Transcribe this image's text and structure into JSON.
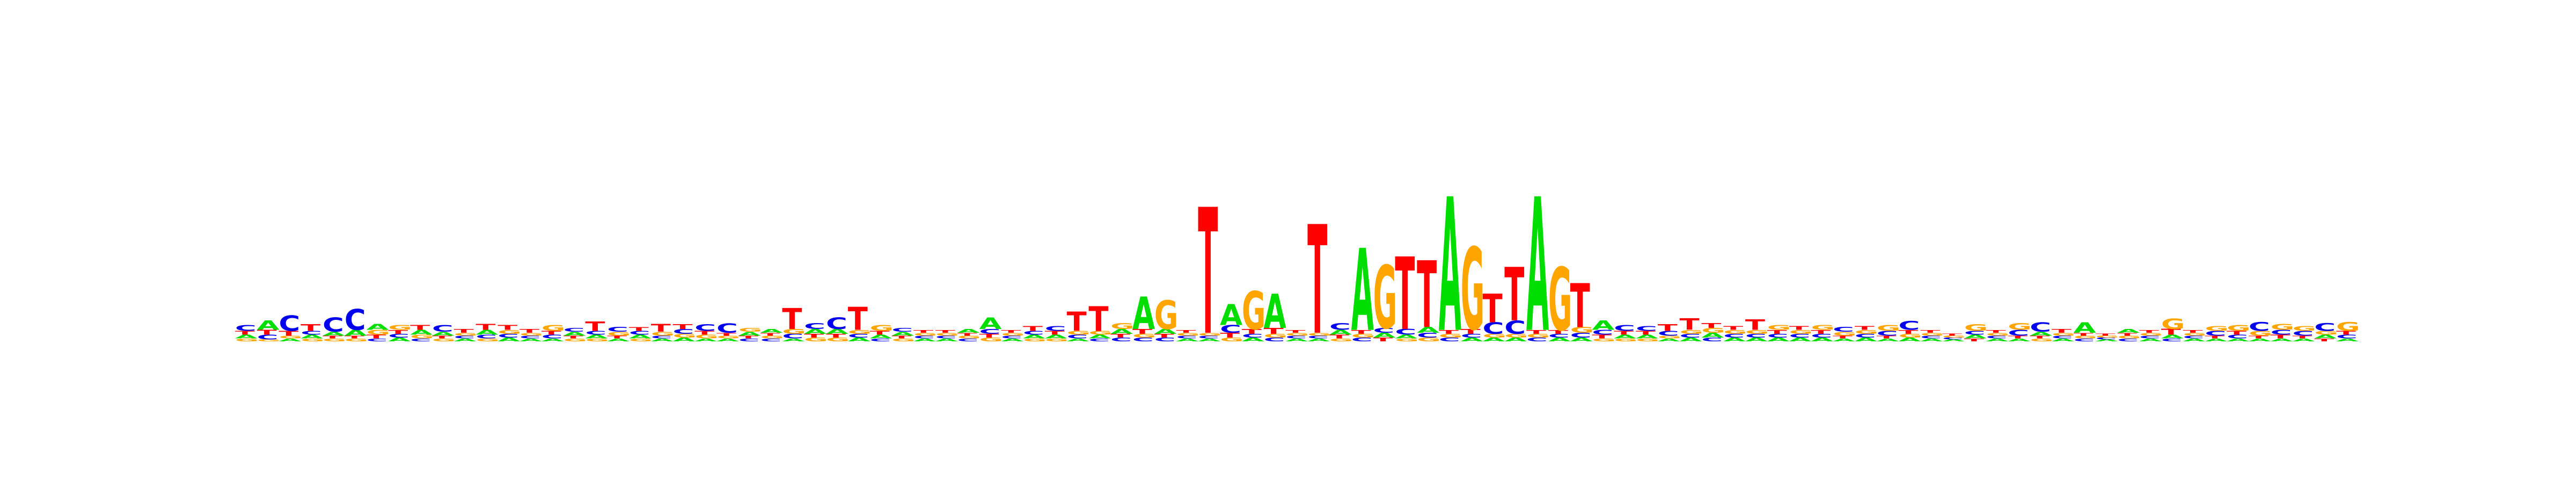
{
  "chart_data": {
    "type": "sequence_logo",
    "title": "",
    "xlabel": "",
    "ylabel": "",
    "alphabet": [
      "A",
      "C",
      "G",
      "T"
    ],
    "colors": {
      "A": "#00dd00",
      "C": "#0000ee",
      "G": "#ffa500",
      "T": "#ff0000"
    },
    "ylim": [
      0,
      2.0
    ],
    "positions": [
      {
        "A": 0.04,
        "C": 0.06,
        "G": 0.03,
        "T": 0.04
      },
      {
        "A": 0.1,
        "C": 0.05,
        "G": 0.02,
        "T": 0.05
      },
      {
        "A": 0.03,
        "C": 0.16,
        "G": 0.03,
        "T": 0.05
      },
      {
        "A": 0.04,
        "C": 0.04,
        "G": 0.03,
        "T": 0.07
      },
      {
        "A": 0.04,
        "C": 0.15,
        "G": 0.03,
        "T": 0.03
      },
      {
        "A": 0.06,
        "C": 0.22,
        "G": 0.03,
        "T": 0.03
      },
      {
        "A": 0.06,
        "C": 0.03,
        "G": 0.05,
        "T": 0.04
      },
      {
        "A": 0.04,
        "C": 0.04,
        "G": 0.05,
        "T": 0.04
      },
      {
        "A": 0.05,
        "C": 0.03,
        "G": 0.04,
        "T": 0.05
      },
      {
        "A": 0.04,
        "C": 0.07,
        "G": 0.03,
        "T": 0.03
      },
      {
        "A": 0.03,
        "C": 0.03,
        "G": 0.03,
        "T": 0.04
      },
      {
        "A": 0.05,
        "C": 0.04,
        "G": 0.03,
        "T": 0.06
      },
      {
        "A": 0.04,
        "C": 0.04,
        "G": 0.04,
        "T": 0.05
      },
      {
        "A": 0.03,
        "C": 0.03,
        "G": 0.03,
        "T": 0.04
      },
      {
        "A": 0.03,
        "C": 0.04,
        "G": 0.06,
        "T": 0.04
      },
      {
        "A": 0.04,
        "C": 0.04,
        "G": 0.03,
        "T": 0.03
      },
      {
        "A": 0.04,
        "C": 0.04,
        "G": 0.03,
        "T": 0.1
      },
      {
        "A": 0.03,
        "C": 0.05,
        "G": 0.04,
        "T": 0.03
      },
      {
        "A": 0.04,
        "C": 0.04,
        "G": 0.03,
        "T": 0.04
      },
      {
        "A": 0.03,
        "C": 0.03,
        "G": 0.04,
        "T": 0.08
      },
      {
        "A": 0.04,
        "C": 0.05,
        "G": 0.04,
        "T": 0.05
      },
      {
        "A": 0.03,
        "C": 0.07,
        "G": 0.04,
        "T": 0.04
      },
      {
        "A": 0.03,
        "C": 0.1,
        "G": 0.03,
        "T": 0.03
      },
      {
        "A": 0.04,
        "C": 0.03,
        "G": 0.04,
        "T": 0.03
      },
      {
        "A": 0.04,
        "C": 0.03,
        "G": 0.03,
        "T": 0.03
      },
      {
        "A": 0.03,
        "C": 0.05,
        "G": 0.05,
        "T": 0.22
      },
      {
        "A": 0.05,
        "C": 0.06,
        "G": 0.04,
        "T": 0.04
      },
      {
        "A": 0.05,
        "C": 0.12,
        "G": 0.04,
        "T": 0.04
      },
      {
        "A": 0.04,
        "C": 0.04,
        "G": 0.04,
        "T": 0.24
      },
      {
        "A": 0.04,
        "C": 0.03,
        "G": 0.06,
        "T": 0.04
      },
      {
        "A": 0.04,
        "C": 0.04,
        "G": 0.03,
        "T": 0.03
      },
      {
        "A": 0.03,
        "C": 0.03,
        "G": 0.03,
        "T": 0.03
      },
      {
        "A": 0.03,
        "C": 0.03,
        "G": 0.03,
        "T": 0.03
      },
      {
        "A": 0.04,
        "C": 0.03,
        "G": 0.03,
        "T": 0.03
      },
      {
        "A": 0.12,
        "C": 0.05,
        "G": 0.04,
        "T": 0.04
      },
      {
        "A": 0.03,
        "C": 0.03,
        "G": 0.03,
        "T": 0.03
      },
      {
        "A": 0.04,
        "C": 0.04,
        "G": 0.03,
        "T": 0.05
      },
      {
        "A": 0.04,
        "C": 0.05,
        "G": 0.03,
        "T": 0.04
      },
      {
        "A": 0.03,
        "C": 0.04,
        "G": 0.04,
        "T": 0.2
      },
      {
        "A": 0.04,
        "C": 0.03,
        "G": 0.04,
        "T": 0.26
      },
      {
        "A": 0.05,
        "C": 0.04,
        "G": 0.06,
        "T": 0.04
      },
      {
        "A": 0.34,
        "C": 0.04,
        "G": 0.04,
        "T": 0.05
      },
      {
        "A": 0.05,
        "C": 0.04,
        "G": 0.3,
        "T": 0.04
      },
      {
        "A": 0.03,
        "C": 0.03,
        "G": 0.03,
        "T": 0.03
      },
      {
        "A": 0.03,
        "C": 0.03,
        "G": 0.03,
        "T": 1.32
      },
      {
        "A": 0.22,
        "C": 0.08,
        "G": 0.04,
        "T": 0.05
      },
      {
        "A": 0.04,
        "C": 0.04,
        "G": 0.4,
        "T": 0.05
      },
      {
        "A": 0.36,
        "C": 0.04,
        "G": 0.04,
        "T": 0.06
      },
      {
        "A": 0.03,
        "C": 0.03,
        "G": 0.03,
        "T": 0.03
      },
      {
        "A": 0.03,
        "C": 0.03,
        "G": 0.03,
        "T": 1.14
      },
      {
        "A": 0.05,
        "C": 0.07,
        "G": 0.03,
        "T": 0.04
      },
      {
        "A": 0.86,
        "C": 0.04,
        "G": 0.04,
        "T": 0.04
      },
      {
        "A": 0.05,
        "C": 0.05,
        "G": 0.66,
        "T": 0.04
      },
      {
        "A": 0.04,
        "C": 0.06,
        "G": 0.03,
        "T": 0.76
      },
      {
        "A": 0.06,
        "C": 0.05,
        "G": 0.04,
        "T": 0.7
      },
      {
        "A": 1.4,
        "C": 0.04,
        "G": 0.04,
        "T": 0.04
      },
      {
        "A": 0.04,
        "C": 0.04,
        "G": 0.86,
        "T": 0.05
      },
      {
        "A": 0.04,
        "C": 0.12,
        "G": 0.04,
        "T": 0.3
      },
      {
        "A": 0.04,
        "C": 0.14,
        "G": 0.04,
        "T": 0.56
      },
      {
        "A": 1.4,
        "C": 0.04,
        "G": 0.04,
        "T": 0.04
      },
      {
        "A": 0.04,
        "C": 0.04,
        "G": 0.66,
        "T": 0.04
      },
      {
        "A": 0.04,
        "C": 0.05,
        "G": 0.06,
        "T": 0.46
      },
      {
        "A": 0.1,
        "C": 0.05,
        "G": 0.03,
        "T": 0.04
      },
      {
        "A": 0.04,
        "C": 0.06,
        "G": 0.03,
        "T": 0.04
      },
      {
        "A": 0.04,
        "C": 0.05,
        "G": 0.03,
        "T": 0.04
      },
      {
        "A": 0.03,
        "C": 0.05,
        "G": 0.03,
        "T": 0.07
      },
      {
        "A": 0.04,
        "C": 0.04,
        "G": 0.04,
        "T": 0.12
      },
      {
        "A": 0.05,
        "C": 0.04,
        "G": 0.05,
        "T": 0.05
      },
      {
        "A": 0.04,
        "C": 0.04,
        "G": 0.04,
        "T": 0.04
      },
      {
        "A": 0.04,
        "C": 0.04,
        "G": 0.04,
        "T": 0.11
      },
      {
        "A": 0.04,
        "C": 0.04,
        "G": 0.05,
        "T": 0.04
      },
      {
        "A": 0.04,
        "C": 0.04,
        "G": 0.04,
        "T": 0.04
      },
      {
        "A": 0.04,
        "C": 0.04,
        "G": 0.05,
        "T": 0.04
      },
      {
        "A": 0.03,
        "C": 0.05,
        "G": 0.04,
        "T": 0.03
      },
      {
        "A": 0.04,
        "C": 0.04,
        "G": 0.04,
        "T": 0.04
      },
      {
        "A": 0.03,
        "C": 0.05,
        "G": 0.06,
        "T": 0.03
      },
      {
        "A": 0.04,
        "C": 0.09,
        "G": 0.04,
        "T": 0.04
      },
      {
        "A": 0.03,
        "C": 0.03,
        "G": 0.03,
        "T": 0.03
      },
      {
        "A": 0.02,
        "C": 0.02,
        "G": 0.02,
        "T": 0.02
      },
      {
        "A": 0.04,
        "C": 0.04,
        "G": 0.07,
        "T": 0.03
      },
      {
        "A": 0.03,
        "C": 0.03,
        "G": 0.03,
        "T": 0.03
      },
      {
        "A": 0.03,
        "C": 0.06,
        "G": 0.07,
        "T": 0.03
      },
      {
        "A": 0.04,
        "C": 0.1,
        "G": 0.03,
        "T": 0.03
      },
      {
        "A": 0.03,
        "C": 0.03,
        "G": 0.03,
        "T": 0.04
      },
      {
        "A": 0.11,
        "C": 0.03,
        "G": 0.03,
        "T": 0.03
      },
      {
        "A": 0.02,
        "C": 0.02,
        "G": 0.02,
        "T": 0.02
      },
      {
        "A": 0.04,
        "C": 0.03,
        "G": 0.03,
        "T": 0.03
      },
      {
        "A": 0.03,
        "C": 0.03,
        "G": 0.03,
        "T": 0.03
      },
      {
        "A": 0.04,
        "C": 0.03,
        "G": 0.11,
        "T": 0.06
      },
      {
        "A": 0.03,
        "C": 0.03,
        "G": 0.03,
        "T": 0.03
      },
      {
        "A": 0.03,
        "C": 0.05,
        "G": 0.05,
        "T": 0.03
      },
      {
        "A": 0.03,
        "C": 0.04,
        "G": 0.06,
        "T": 0.04
      },
      {
        "A": 0.03,
        "C": 0.09,
        "G": 0.05,
        "T": 0.03
      },
      {
        "A": 0.03,
        "C": 0.05,
        "G": 0.06,
        "T": 0.04
      },
      {
        "A": 0.03,
        "C": 0.05,
        "G": 0.05,
        "T": 0.03
      },
      {
        "A": 0.04,
        "C": 0.08,
        "G": 0.04,
        "T": 0.03
      },
      {
        "A": 0.03,
        "C": 0.04,
        "G": 0.09,
        "T": 0.04
      }
    ]
  }
}
